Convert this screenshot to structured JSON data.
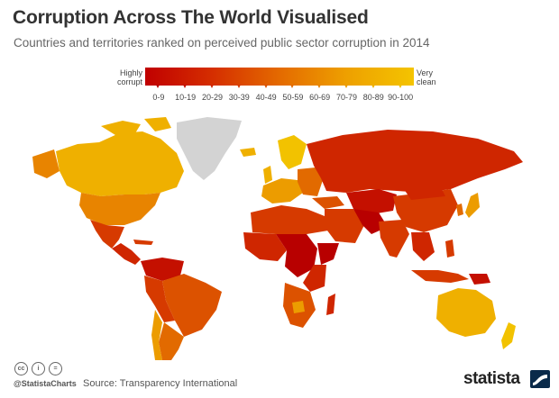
{
  "header": {
    "title": "Corruption Across The World Visualised",
    "subtitle": "Countries and territories ranked on perceived public sector corruption in 2014"
  },
  "legend": {
    "left_label": [
      "Highly",
      "corrupt"
    ],
    "right_label": [
      "Very",
      "clean"
    ],
    "ranges": [
      "0-9",
      "10-19",
      "20-29",
      "30-39",
      "40-49",
      "50-59",
      "60-69",
      "70-79",
      "80-89",
      "90-100"
    ],
    "colors": [
      "#b80000",
      "#c41000",
      "#cf2600",
      "#d63a00",
      "#dc5200",
      "#e26a00",
      "#e88400",
      "#ec9c00",
      "#efb000",
      "#f2c200"
    ]
  },
  "map_colors": {
    "no_data": "#d3d3d3",
    "ocean": "#ffffff"
  },
  "footer": {
    "cc_icons": [
      "cc",
      "i",
      "="
    ],
    "handle": "@StatistaCharts",
    "source": "Source: Transparency International",
    "brand": "statista"
  }
}
